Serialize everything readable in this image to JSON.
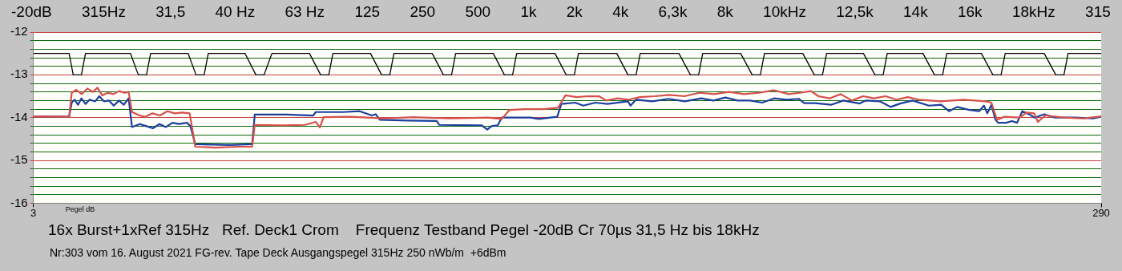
{
  "chart_data": {
    "type": "line",
    "title": "16x Burst+1xRef 315Hz   Ref. Deck1 Crom    Frequenz Testband Pegel -20dB Cr 70µs 31,5 Hz bis 18kHz",
    "subtitle": "Nr:303 vom 16. August 2021 FG-rev. Tape Deck Ausgangspegel 315Hz 250 nWb/m  +6dBm",
    "xlabel": "Pegel dB",
    "annotations": [
      "-20dB",
      "315Hz",
      "31,5",
      "40 Hz",
      "63 Hz",
      "125",
      "250",
      "500",
      "1k",
      "2k",
      "4k",
      "6,3k",
      "8k",
      "10kHz",
      "12,5k",
      "14k",
      "16k",
      "18kHz",
      "315"
    ],
    "xlim": [
      3,
      290
    ],
    "xticks": [
      3,
      290
    ],
    "ylim": [
      -16,
      -12
    ],
    "yticks": [
      -12,
      {
        "value": -12.2,
        "label": null
      },
      {
        "value": -12.4,
        "label": null
      },
      {
        "value": -12.6,
        "label": null
      },
      {
        "value": -12.8,
        "label": null
      },
      -13,
      {
        "value": -13.2,
        "label": null
      },
      {
        "value": -13.4,
        "label": null
      },
      {
        "value": -13.6,
        "label": null
      },
      {
        "value": -13.8,
        "label": null
      },
      -14,
      {
        "value": -14.2,
        "label": null
      },
      {
        "value": -14.4,
        "label": null
      },
      {
        "value": -14.6,
        "label": null
      },
      {
        "value": -14.8,
        "label": null
      },
      -15,
      {
        "value": -15.2,
        "label": null
      },
      {
        "value": -15.4,
        "label": null
      },
      {
        "value": -15.6,
        "label": null
      },
      {
        "value": -15.8,
        "label": null
      },
      -16
    ],
    "grid": "y",
    "legend": false,
    "marker": "none",
    "line_style": "solid",
    "series": [
      {
        "color": "#000000",
        "x": [
          3,
          12.6,
          13.7,
          15.9,
          17,
          29.1,
          31.2,
          33.4,
          34.5,
          44.6,
          46.7,
          48.9,
          50,
          59.9,
          62.8,
          65,
          67.1,
          77.2,
          80.2,
          82.4,
          83.5,
          93.6,
          96.6,
          98.8,
          99.9,
          110.2,
          113.2,
          115.4,
          116.5,
          126.6,
          129.6,
          131.8,
          132.9,
          143.2,
          146.2,
          148.4,
          149.5,
          159.8,
          162.8,
          165,
          166.1,
          176.5,
          179.6,
          181.8,
          182.9,
          193.1,
          196.2,
          198.4,
          199.5,
          209.8,
          212.9,
          215.1,
          216.2,
          226.1,
          229.2,
          231.4,
          232.5,
          242.1,
          245.2,
          247.4,
          248.5,
          257.8,
          260.9,
          263.1,
          264.2,
          274.7,
          277.8,
          280,
          281.1,
          290
        ],
        "values": [
          -12.5,
          -12.5,
          -13,
          -13,
          -12.5,
          -12.5,
          -13,
          -13,
          -12.5,
          -12.5,
          -13,
          -13,
          -12.5,
          -12.5,
          -13,
          -13,
          -12.5,
          -12.5,
          -13,
          -13,
          -12.5,
          -12.5,
          -13,
          -13,
          -12.5,
          -12.5,
          -13,
          -13,
          -12.5,
          -12.5,
          -13,
          -13,
          -12.5,
          -12.5,
          -13,
          -13,
          -12.5,
          -12.5,
          -13,
          -13,
          -12.5,
          -12.5,
          -13,
          -13,
          -12.5,
          -12.5,
          -13,
          -13,
          -12.5,
          -12.5,
          -13,
          -13,
          -12.5,
          -12.5,
          -13,
          -13,
          -12.5,
          -12.5,
          -13,
          -13,
          -12.5,
          -12.5,
          -13,
          -13,
          -12.5,
          -12.5,
          -13,
          -13,
          -12.5,
          -12.5
        ]
      },
      {
        "color": "#d6504a",
        "x": [
          3,
          12.6,
          13.3,
          14.5,
          16,
          17.5,
          19,
          20.2,
          21.5,
          23,
          24.5,
          26,
          27.5,
          28.6,
          29.5,
          31.5,
          33,
          35,
          37,
          39,
          41,
          43,
          45,
          46.5,
          52,
          58,
          61.8,
          62.5,
          70,
          76,
          78.9,
          80,
          81,
          88,
          92.8,
          97,
          105,
          115,
          125,
          128.9,
          131,
          135,
          140,
          144,
          146,
          149,
          152,
          155,
          157,
          160,
          163,
          166,
          170,
          174,
          178,
          182,
          186,
          190,
          194,
          198,
          202,
          206,
          209,
          212,
          214,
          217,
          220,
          223,
          226,
          229,
          232,
          235,
          238,
          241,
          244,
          247,
          250,
          253,
          256,
          259,
          260.5,
          262,
          264,
          268,
          270,
          272,
          273,
          275,
          280,
          285,
          290
        ],
        "values": [
          -13.97,
          -13.98,
          -13.42,
          -13.35,
          -13.45,
          -13.32,
          -13.4,
          -13.3,
          -13.48,
          -13.42,
          -13.45,
          -13.38,
          -13.42,
          -13.4,
          -13.87,
          -13.95,
          -13.98,
          -13.9,
          -13.95,
          -13.85,
          -13.9,
          -13.88,
          -13.9,
          -14.68,
          -14.7,
          -14.68,
          -14.68,
          -14.17,
          -14.18,
          -14.17,
          -14.1,
          -14.23,
          -13.99,
          -13.98,
          -14,
          -14.02,
          -13.99,
          -14.02,
          -14,
          -14.03,
          -13.82,
          -13.8,
          -13.8,
          -13.77,
          -13.48,
          -13.52,
          -13.5,
          -13.5,
          -13.6,
          -13.55,
          -13.58,
          -13.52,
          -13.5,
          -13.47,
          -13.5,
          -13.42,
          -13.45,
          -13.4,
          -13.45,
          -13.42,
          -13.36,
          -13.45,
          -13.42,
          -13.38,
          -13.5,
          -13.55,
          -13.45,
          -13.6,
          -13.5,
          -13.55,
          -13.5,
          -13.58,
          -13.52,
          -13.58,
          -13.6,
          -13.62,
          -13.6,
          -13.58,
          -13.6,
          -13.62,
          -13.65,
          -14.05,
          -13.98,
          -14,
          -13.88,
          -13.9,
          -14.1,
          -13.95,
          -14,
          -14.02,
          -13.97
        ]
      },
      {
        "color": "#1c3f9c",
        "x": [
          3,
          12.6,
          13.3,
          14.1,
          15,
          15.9,
          17,
          18.1,
          19.6,
          20.7,
          22,
          23.3,
          24.6,
          26,
          27.3,
          28.6,
          29.5,
          31.6,
          33.4,
          35.1,
          36.9,
          38.6,
          40.4,
          42.1,
          44.3,
          45.2,
          46.5,
          55.7,
          61.8,
          62.5,
          71,
          78.2,
          78.9,
          86.3,
          90.7,
          94,
          95,
          96.1,
          103.8,
          111.4,
          112.1,
          123.5,
          125,
          126.1,
          127.8,
          128.9,
          136.6,
          138.8,
          143.8,
          144.9,
          148.6,
          150.8,
          154,
          157.3,
          162.8,
          163.5,
          165,
          169.4,
          173.7,
          178.1,
          182.5,
          185.8,
          189,
          192.3,
          195.6,
          198.9,
          202.1,
          205.4,
          208.7,
          210.2,
          213.1,
          217.4,
          220.7,
          225.1,
          226.8,
          230.6,
          233.4,
          236,
          239.3,
          243.7,
          247,
          249.1,
          251.3,
          254.6,
          257.2,
          258.5,
          259.4,
          260.5,
          261.6,
          262.3,
          264.5,
          266,
          267.4,
          268.8,
          270.6,
          272.1,
          274.7,
          277.6,
          283,
          287.8,
          290
        ],
        "values": [
          -13.97,
          -13.98,
          -13.65,
          -13.58,
          -13.7,
          -13.55,
          -13.68,
          -13.58,
          -13.62,
          -13.5,
          -13.62,
          -13.6,
          -13.72,
          -13.6,
          -13.7,
          -13.55,
          -14.22,
          -14.15,
          -14.2,
          -14.25,
          -14.15,
          -14.22,
          -14.12,
          -14.15,
          -14.12,
          -14.2,
          -14.62,
          -14.64,
          -14.62,
          -13.93,
          -13.93,
          -13.95,
          -13.87,
          -13.87,
          -13.85,
          -13.95,
          -13.92,
          -14.05,
          -14.07,
          -14.08,
          -14.17,
          -14.18,
          -14.28,
          -14.2,
          -14.18,
          -14,
          -14,
          -14.03,
          -13.98,
          -13.68,
          -13.65,
          -13.72,
          -13.65,
          -13.68,
          -13.62,
          -13.72,
          -13.58,
          -13.62,
          -13.56,
          -13.62,
          -13.55,
          -13.6,
          -13.53,
          -13.6,
          -13.6,
          -13.65,
          -13.55,
          -13.58,
          -13.56,
          -13.66,
          -13.66,
          -13.7,
          -13.6,
          -13.67,
          -13.6,
          -13.62,
          -13.75,
          -13.67,
          -13.6,
          -13.72,
          -13.7,
          -13.85,
          -13.75,
          -13.82,
          -13.85,
          -13.72,
          -13.9,
          -13.7,
          -14.05,
          -14.12,
          -14.12,
          -14.08,
          -14.12,
          -13.85,
          -13.92,
          -14,
          -13.92,
          -14,
          -14,
          -14.02,
          -13.98
        ]
      }
    ]
  }
}
